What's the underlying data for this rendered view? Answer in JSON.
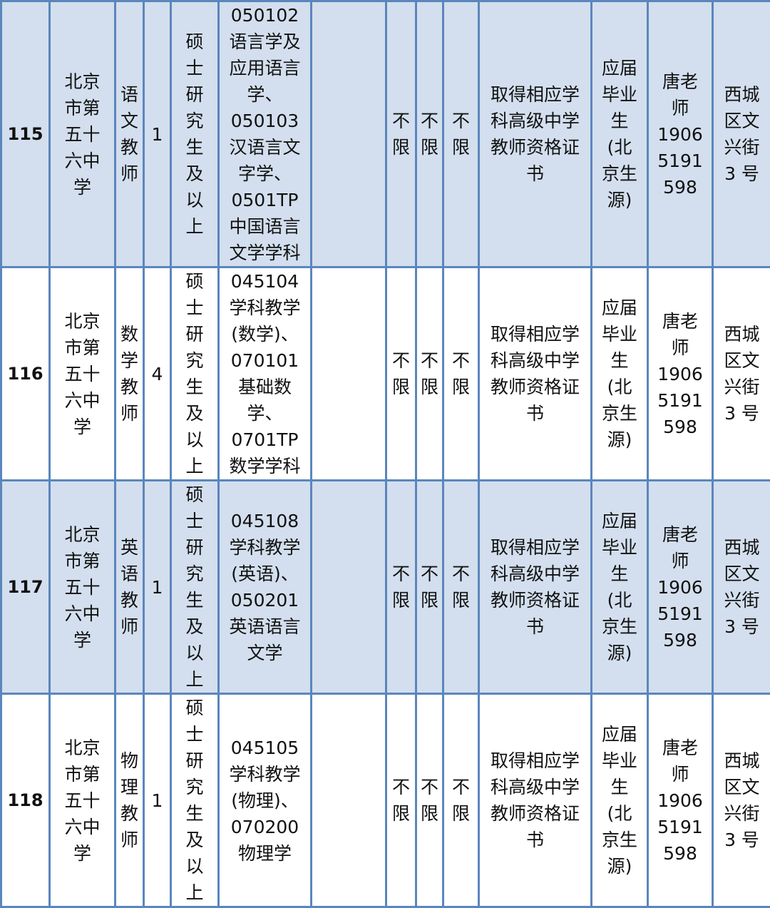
{
  "rows": [
    {
      "id": "115",
      "school": "北京\n市第\n五十\n六中\n学",
      "position": "语\n文\n教\n师",
      "count": "1",
      "education": "硕\n士\n研\n究\n生\n及\n以\n上",
      "major": "050102\n语言学及\n应用语言\n学、\n050103\n汉语言文\n字学、\n0501TP\n中国语言\n文学学科",
      "other": "",
      "req1": "不\n限",
      "req2": "不\n限",
      "req3": "不\n限",
      "certificate": "取得相应学\n科高级中学\n教师资格证\n书",
      "source": "应届\n毕业\n生\n(北\n京生\n源)",
      "contact": "唐老\n师\n1906\n5191\n598",
      "address": "西城\n区文\n兴街\n3 号"
    },
    {
      "id": "116",
      "school": "北京\n市第\n五十\n六中\n学",
      "position": "数\n学\n教\n师",
      "count": "4",
      "education": "硕\n士\n研\n究\n生\n及\n以\n上",
      "major": "045104\n学科教学\n(数学)、\n070101\n基础数\n学、\n0701TP\n数学学科",
      "other": "",
      "req1": "不\n限",
      "req2": "不\n限",
      "req3": "不\n限",
      "certificate": "取得相应学\n科高级中学\n教师资格证\n书",
      "source": "应届\n毕业\n生\n(北\n京生\n源)",
      "contact": "唐老\n师\n1906\n5191\n598",
      "address": "西城\n区文\n兴街\n3 号"
    },
    {
      "id": "117",
      "school": "北京\n市第\n五十\n六中\n学",
      "position": "英\n语\n教\n师",
      "count": "1",
      "education": "硕\n士\n研\n究\n生\n及\n以\n上",
      "major": "045108\n学科教学\n(英语)、\n050201\n英语语言\n文学",
      "other": "",
      "req1": "不\n限",
      "req2": "不\n限",
      "req3": "不\n限",
      "certificate": "取得相应学\n科高级中学\n教师资格证\n书",
      "source": "应届\n毕业\n生\n(北\n京生\n源)",
      "contact": "唐老\n师\n1906\n5191\n598",
      "address": "西城\n区文\n兴街\n3 号"
    },
    {
      "id": "118",
      "school": "北京\n市第\n五十\n六中\n学",
      "position": "物\n理\n教\n师",
      "count": "1",
      "education": "硕\n士\n研\n究\n生\n及\n以\n上",
      "major": "045105\n学科教学\n(物理)、\n070200\n物理学",
      "other": "",
      "req1": "不\n限",
      "req2": "不\n限",
      "req3": "不\n限",
      "certificate": "取得相应学\n科高级中学\n教师资格证\n书",
      "source": "应届\n毕业\n生\n(北\n京生\n源)",
      "contact": "唐老\n师\n1906\n5191\n598",
      "address": "西城\n区文\n兴街\n3 号"
    }
  ],
  "colors": {
    "border": "#5b86bd",
    "shade": "#d3dfee"
  }
}
